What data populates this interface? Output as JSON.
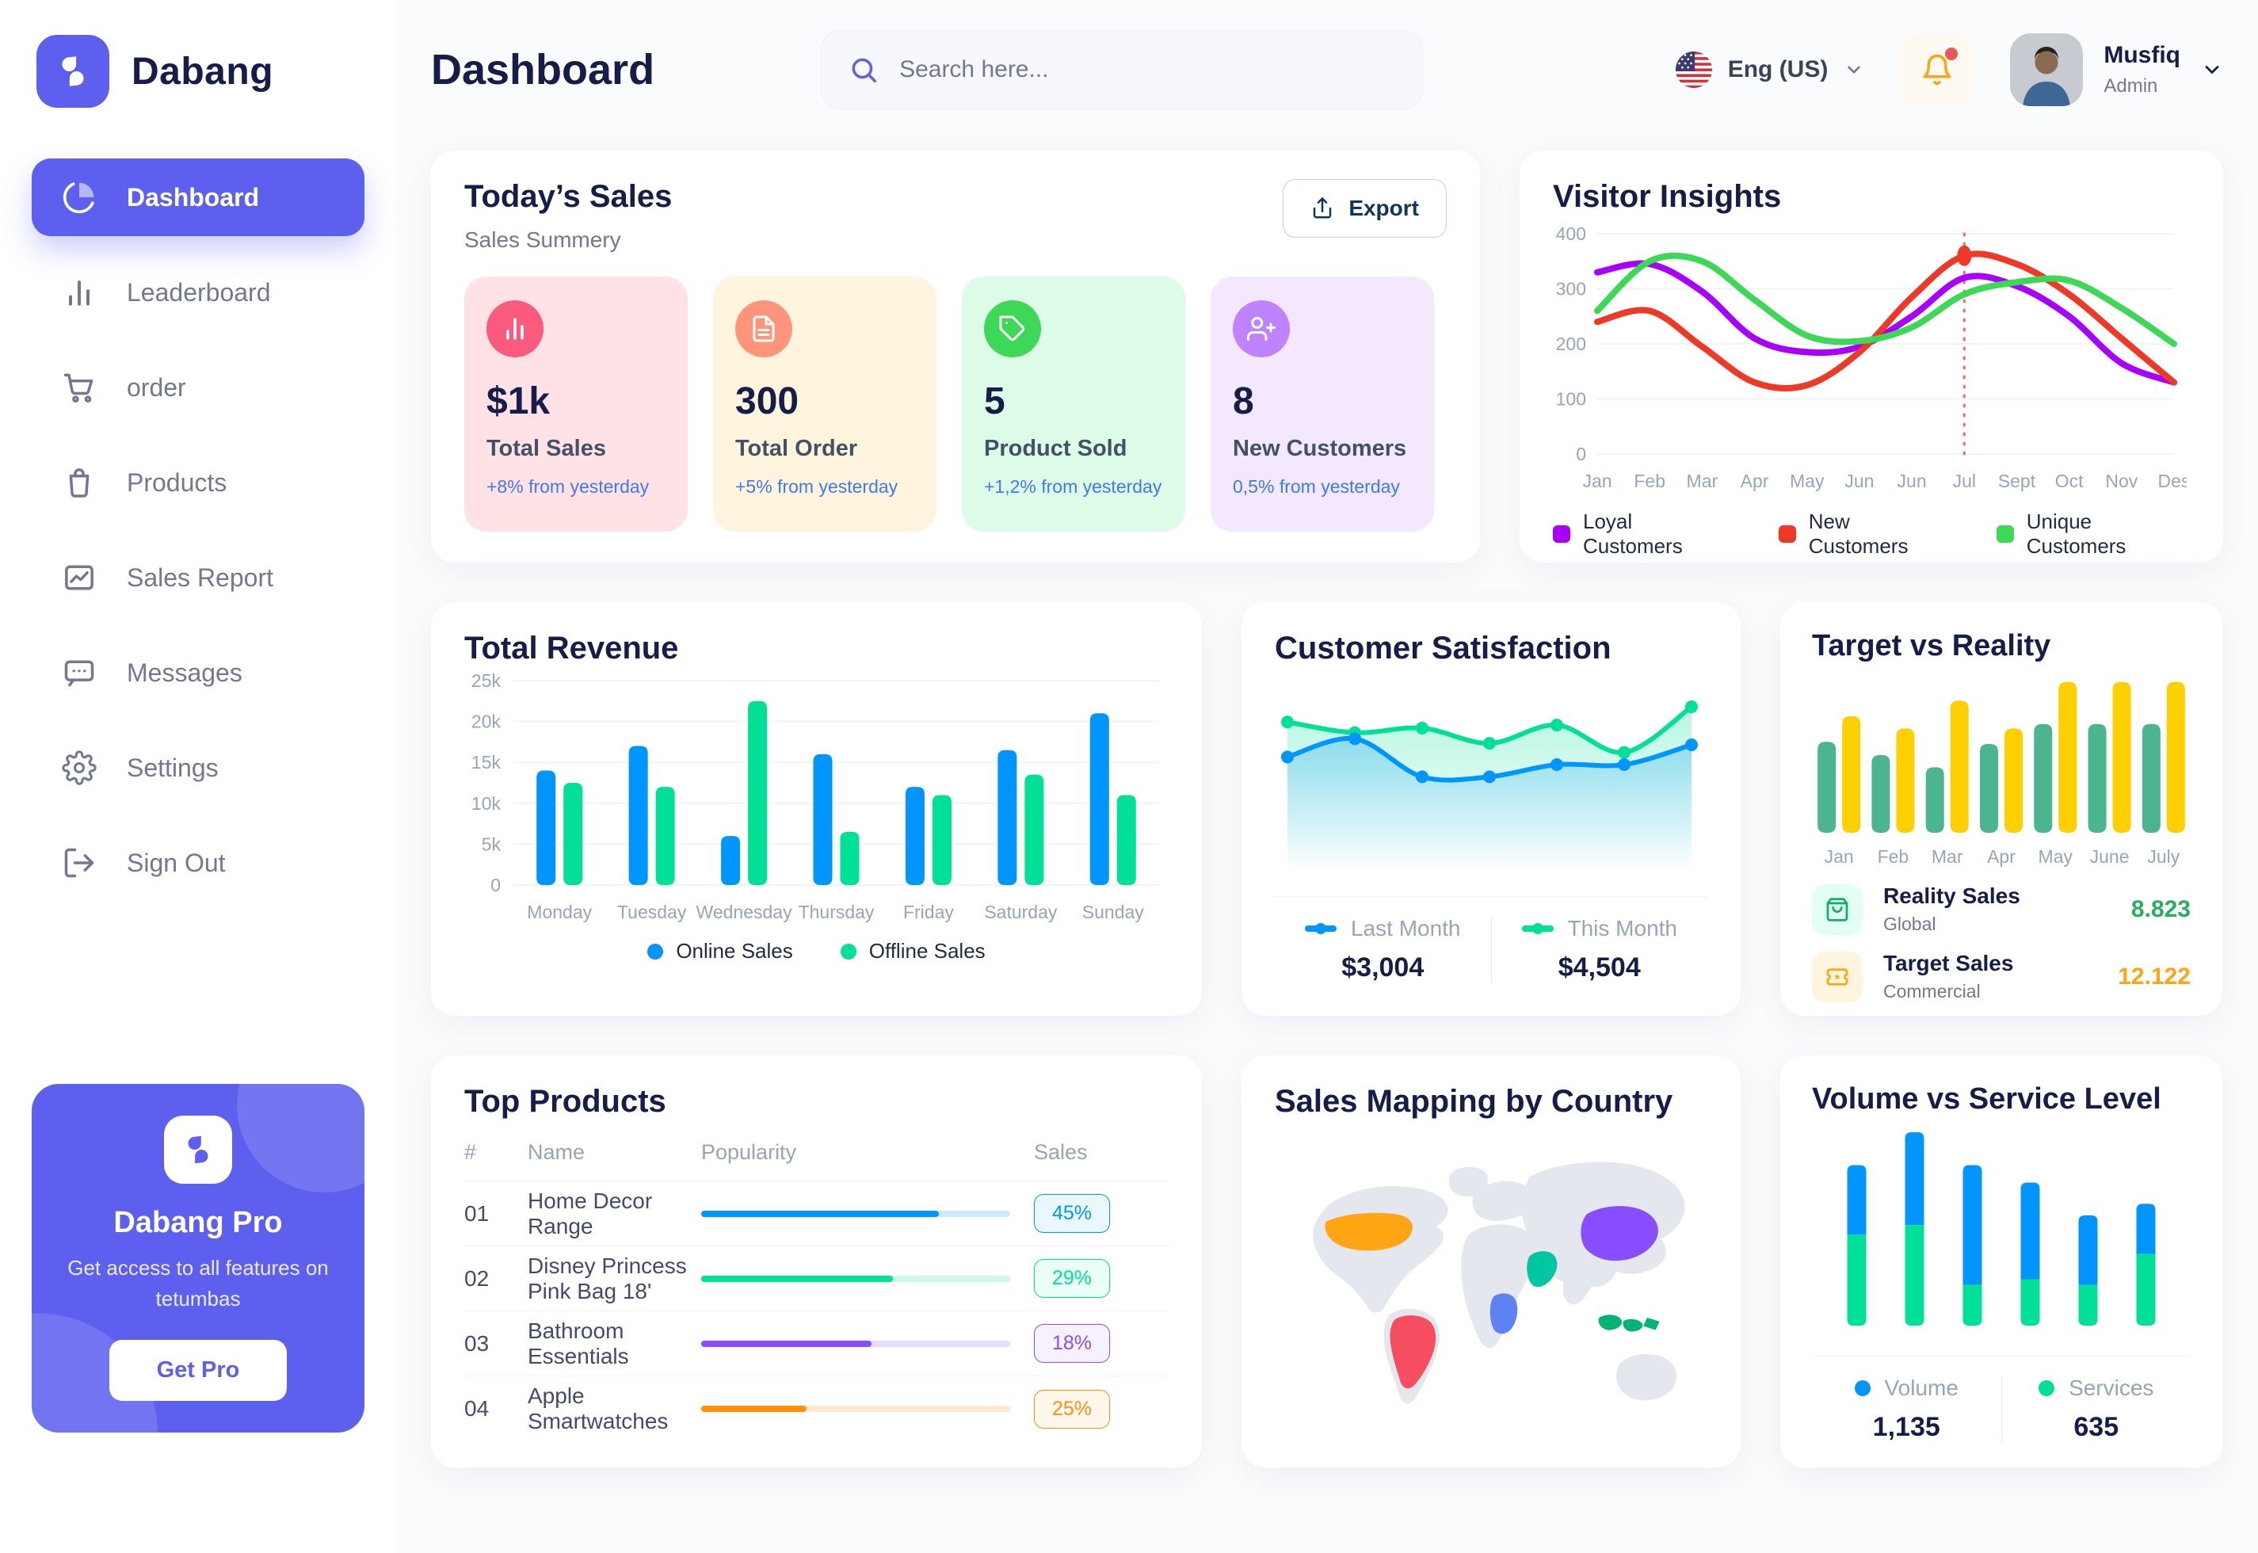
{
  "app": {
    "brand": "Dabang"
  },
  "theme": {
    "primary": "#5D5FEF",
    "navy": "#151D48",
    "muted": "#737791",
    "bg": "#FAFBFC"
  },
  "sidebar": {
    "items": [
      {
        "label": "Dashboard",
        "active": true
      },
      {
        "label": "Leaderboard"
      },
      {
        "label": "order"
      },
      {
        "label": "Products"
      },
      {
        "label": "Sales Report"
      },
      {
        "label": "Messages"
      },
      {
        "label": "Settings"
      },
      {
        "label": "Sign Out"
      }
    ],
    "pro": {
      "title": "Dabang Pro",
      "desc": "Get access to all features on tetumbas",
      "cta": "Get Pro"
    }
  },
  "header": {
    "title": "Dashboard",
    "search_placeholder": "Search here...",
    "language": "Eng (US)",
    "user": {
      "name": "Musfiq",
      "role": "Admin"
    }
  },
  "today_sales": {
    "title": "Today’s Sales",
    "subtitle": "Sales Summery",
    "export_label": "Export",
    "stats": [
      {
        "value": "$1k",
        "label": "Total Sales",
        "delta": "+8% from yesterday",
        "bg": "#FFE2E5",
        "icon_bg": "#FA5A7D",
        "icon": "bar-chart-icon"
      },
      {
        "value": "300",
        "label": "Total Order",
        "delta": "+5% from yesterday",
        "bg": "#FFF4DE",
        "icon_bg": "#FF947A",
        "icon": "document-icon"
      },
      {
        "value": "5",
        "label": "Product Sold",
        "delta": "+1,2% from yesterday",
        "bg": "#DCFCE7",
        "icon_bg": "#3CD856",
        "icon": "tag-icon"
      },
      {
        "value": "8",
        "label": "New Customers",
        "delta": "0,5% from yesterday",
        "bg": "#F3E8FF",
        "icon_bg": "#BF83FF",
        "icon": "user-plus-icon"
      }
    ]
  },
  "top_products": {
    "title": "Top Products",
    "headers": {
      "num": "#",
      "name": "Name",
      "popularity": "Popularity",
      "sales": "Sales"
    },
    "rows": [
      {
        "num": "01",
        "name": "Home Decor Range",
        "popularity": 77,
        "sales": "45%",
        "color": "#0095FF"
      },
      {
        "num": "02",
        "name": "Disney Princess Pink Bag 18'",
        "popularity": 62,
        "sales": "29%",
        "color": "#00E096"
      },
      {
        "num": "03",
        "name": "Bathroom Essentials",
        "popularity": 55,
        "sales": "18%",
        "color": "#884DFF"
      },
      {
        "num": "04",
        "name": "Apple Smartwatches",
        "popularity": 34,
        "sales": "25%",
        "color": "#FF8F0D"
      }
    ]
  },
  "chart_data": [
    {
      "id": "visitor_insights",
      "type": "line",
      "title": "Visitor Insights",
      "x": [
        "Jan",
        "Feb",
        "Mar",
        "Apr",
        "May",
        "Jun",
        "Jun",
        "Jul",
        "Sept",
        "Oct",
        "Nov",
        "Des"
      ],
      "ylim": [
        0,
        400
      ],
      "yticks": [
        0,
        100,
        200,
        300,
        400
      ],
      "grid": true,
      "legend_position": "bottom",
      "marker": {
        "x_index": 7,
        "value": 360,
        "color": "#EF3826"
      },
      "series": [
        {
          "name": "Loyal Customers",
          "color": "#A700FF",
          "values": [
            330,
            345,
            295,
            210,
            185,
            195,
            250,
            320,
            305,
            250,
            165,
            130
          ]
        },
        {
          "name": "New Customers",
          "color": "#EF3826",
          "values": [
            240,
            260,
            195,
            130,
            125,
            185,
            285,
            360,
            345,
            290,
            210,
            130
          ]
        },
        {
          "name": "Unique Customers",
          "color": "#3CD856",
          "values": [
            260,
            350,
            350,
            280,
            215,
            205,
            230,
            290,
            312,
            315,
            265,
            200
          ]
        }
      ]
    },
    {
      "id": "total_revenue",
      "type": "bar",
      "title": "Total Revenue",
      "categories": [
        "Monday",
        "Tuesday",
        "Wednesday",
        "Thursday",
        "Friday",
        "Saturday",
        "Sunday"
      ],
      "ylim": [
        0,
        25
      ],
      "ytick_labels": [
        "0",
        "5k",
        "10k",
        "15k",
        "20k",
        "25k"
      ],
      "unit": "k",
      "legend_position": "bottom",
      "series": [
        {
          "name": "Online Sales",
          "color": "#0095FF",
          "values": [
            14,
            17,
            6,
            16,
            12,
            16.5,
            21
          ]
        },
        {
          "name": "Offline Sales",
          "color": "#00E096",
          "values": [
            12.5,
            12,
            22.5,
            6.5,
            11,
            13.5,
            11
          ]
        }
      ]
    },
    {
      "id": "customer_satisfaction",
      "type": "area",
      "title": "Customer Satisfaction",
      "x": [
        1,
        2,
        3,
        4,
        5,
        6,
        7
      ],
      "ylim": [
        0,
        100
      ],
      "legend_position": "bottom",
      "series": [
        {
          "name": "Last Month",
          "total": "$3,004",
          "color": "#0095FF",
          "values": [
            55,
            67,
            42,
            42,
            50,
            50,
            63
          ]
        },
        {
          "name": "This Month",
          "total": "$4,504",
          "color": "#00E096",
          "values": [
            78,
            71,
            74,
            64,
            76,
            58,
            88
          ]
        }
      ]
    },
    {
      "id": "target_vs_reality",
      "type": "bar",
      "title": "Target vs Reality",
      "categories": [
        "Jan",
        "Feb",
        "Mar",
        "Apr",
        "May",
        "June",
        "July"
      ],
      "ylim": [
        0,
        14
      ],
      "series": [
        {
          "name": "Reality Sales",
          "color": "#4AB58E",
          "values": [
            8.2,
            7,
            5.9,
            8,
            9.8,
            9.8,
            9.8
          ]
        },
        {
          "name": "Target Sales",
          "color": "#FFCF00",
          "values": [
            10.5,
            9.4,
            11.9,
            9.4,
            13.6,
            13.6,
            13.6
          ]
        }
      ],
      "legend": [
        {
          "label": "Reality Sales",
          "sublabel": "Global",
          "value": "8.823",
          "value_color": "#27AE60",
          "icon": "shopping-bag-icon",
          "icon_bg": "#E2FFF3",
          "icon_color": "#0CAF60"
        },
        {
          "label": "Target Sales",
          "sublabel": "Commercial",
          "value": "12.122",
          "value_color": "#FFA412",
          "icon": "ticket-icon",
          "icon_bg": "#FFF4DE",
          "icon_color": "#FFA412"
        }
      ]
    },
    {
      "id": "volume_vs_service",
      "type": "bar-stacked",
      "title": "Volume vs Service Level",
      "ylim": [
        0,
        100
      ],
      "series": [
        {
          "name": "Volume",
          "total": "1,135",
          "color": "#0095FF",
          "values": [
            36,
            48,
            62,
            50,
            36,
            26
          ]
        },
        {
          "name": "Services",
          "total": "635",
          "color": "#00E096",
          "values": [
            47,
            52,
            21,
            24,
            21,
            37
          ]
        }
      ]
    },
    {
      "id": "sales_map",
      "type": "map",
      "title": "Sales Mapping by Country",
      "highlighted": [
        {
          "country": "United States",
          "color": "#FFA412"
        },
        {
          "country": "Brazil",
          "color": "#F64E60"
        },
        {
          "country": "China",
          "color": "#884DFF"
        },
        {
          "country": "Saudi Arabia",
          "color": "#00C6A2"
        },
        {
          "country": "DR Congo",
          "color": "#5E81F4"
        },
        {
          "country": "Indonesia",
          "color": "#00B574"
        }
      ]
    }
  ]
}
